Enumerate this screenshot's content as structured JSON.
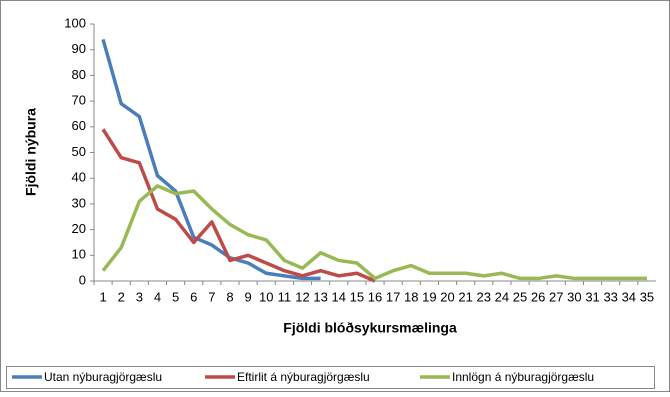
{
  "chart_data": {
    "type": "line",
    "x_label": "Fjöldi blóðsykursmælinga",
    "y_label": "Fjöldi nýbura",
    "categories": [
      "1",
      "2",
      "3",
      "4",
      "5",
      "6",
      "7",
      "8",
      "9",
      "10",
      "11",
      "12",
      "13",
      "14",
      "15",
      "16",
      "17",
      "18",
      "19",
      "20",
      "21",
      "23",
      "24",
      "25",
      "26",
      "27",
      "30",
      "31",
      "33",
      "34",
      "35"
    ],
    "series": [
      {
        "name": "Utan nýburagjörgæslu",
        "color": "#4a7ebb",
        "values": [
          94,
          69,
          64,
          41,
          35,
          17,
          14,
          9,
          7,
          3,
          2,
          1,
          1,
          null,
          null,
          null,
          null,
          null,
          null,
          null,
          null,
          null,
          null,
          null,
          null,
          null,
          null,
          null,
          null,
          null,
          null
        ]
      },
      {
        "name": "Eftirlit á nýburagjörgæslu",
        "color": "#be4b48",
        "values": [
          59,
          48,
          46,
          28,
          24,
          15,
          23,
          8,
          10,
          7,
          4,
          2,
          4,
          2,
          3,
          0,
          null,
          null,
          null,
          null,
          null,
          null,
          null,
          null,
          null,
          null,
          null,
          null,
          null,
          null,
          null
        ]
      },
      {
        "name": "Innlögn á nýburagjörgæslu",
        "color": "#98b954",
        "values": [
          4,
          13,
          31,
          37,
          34,
          35,
          28,
          22,
          18,
          16,
          8,
          5,
          11,
          8,
          7,
          1,
          4,
          6,
          3,
          3,
          3,
          2,
          3,
          1,
          1,
          2,
          1,
          1,
          1,
          1,
          1
        ]
      }
    ],
    "ylim": [
      0,
      100
    ],
    "yticks": [
      0,
      10,
      20,
      30,
      40,
      50,
      60,
      70,
      80,
      90,
      100
    ],
    "legend": "bottom"
  }
}
